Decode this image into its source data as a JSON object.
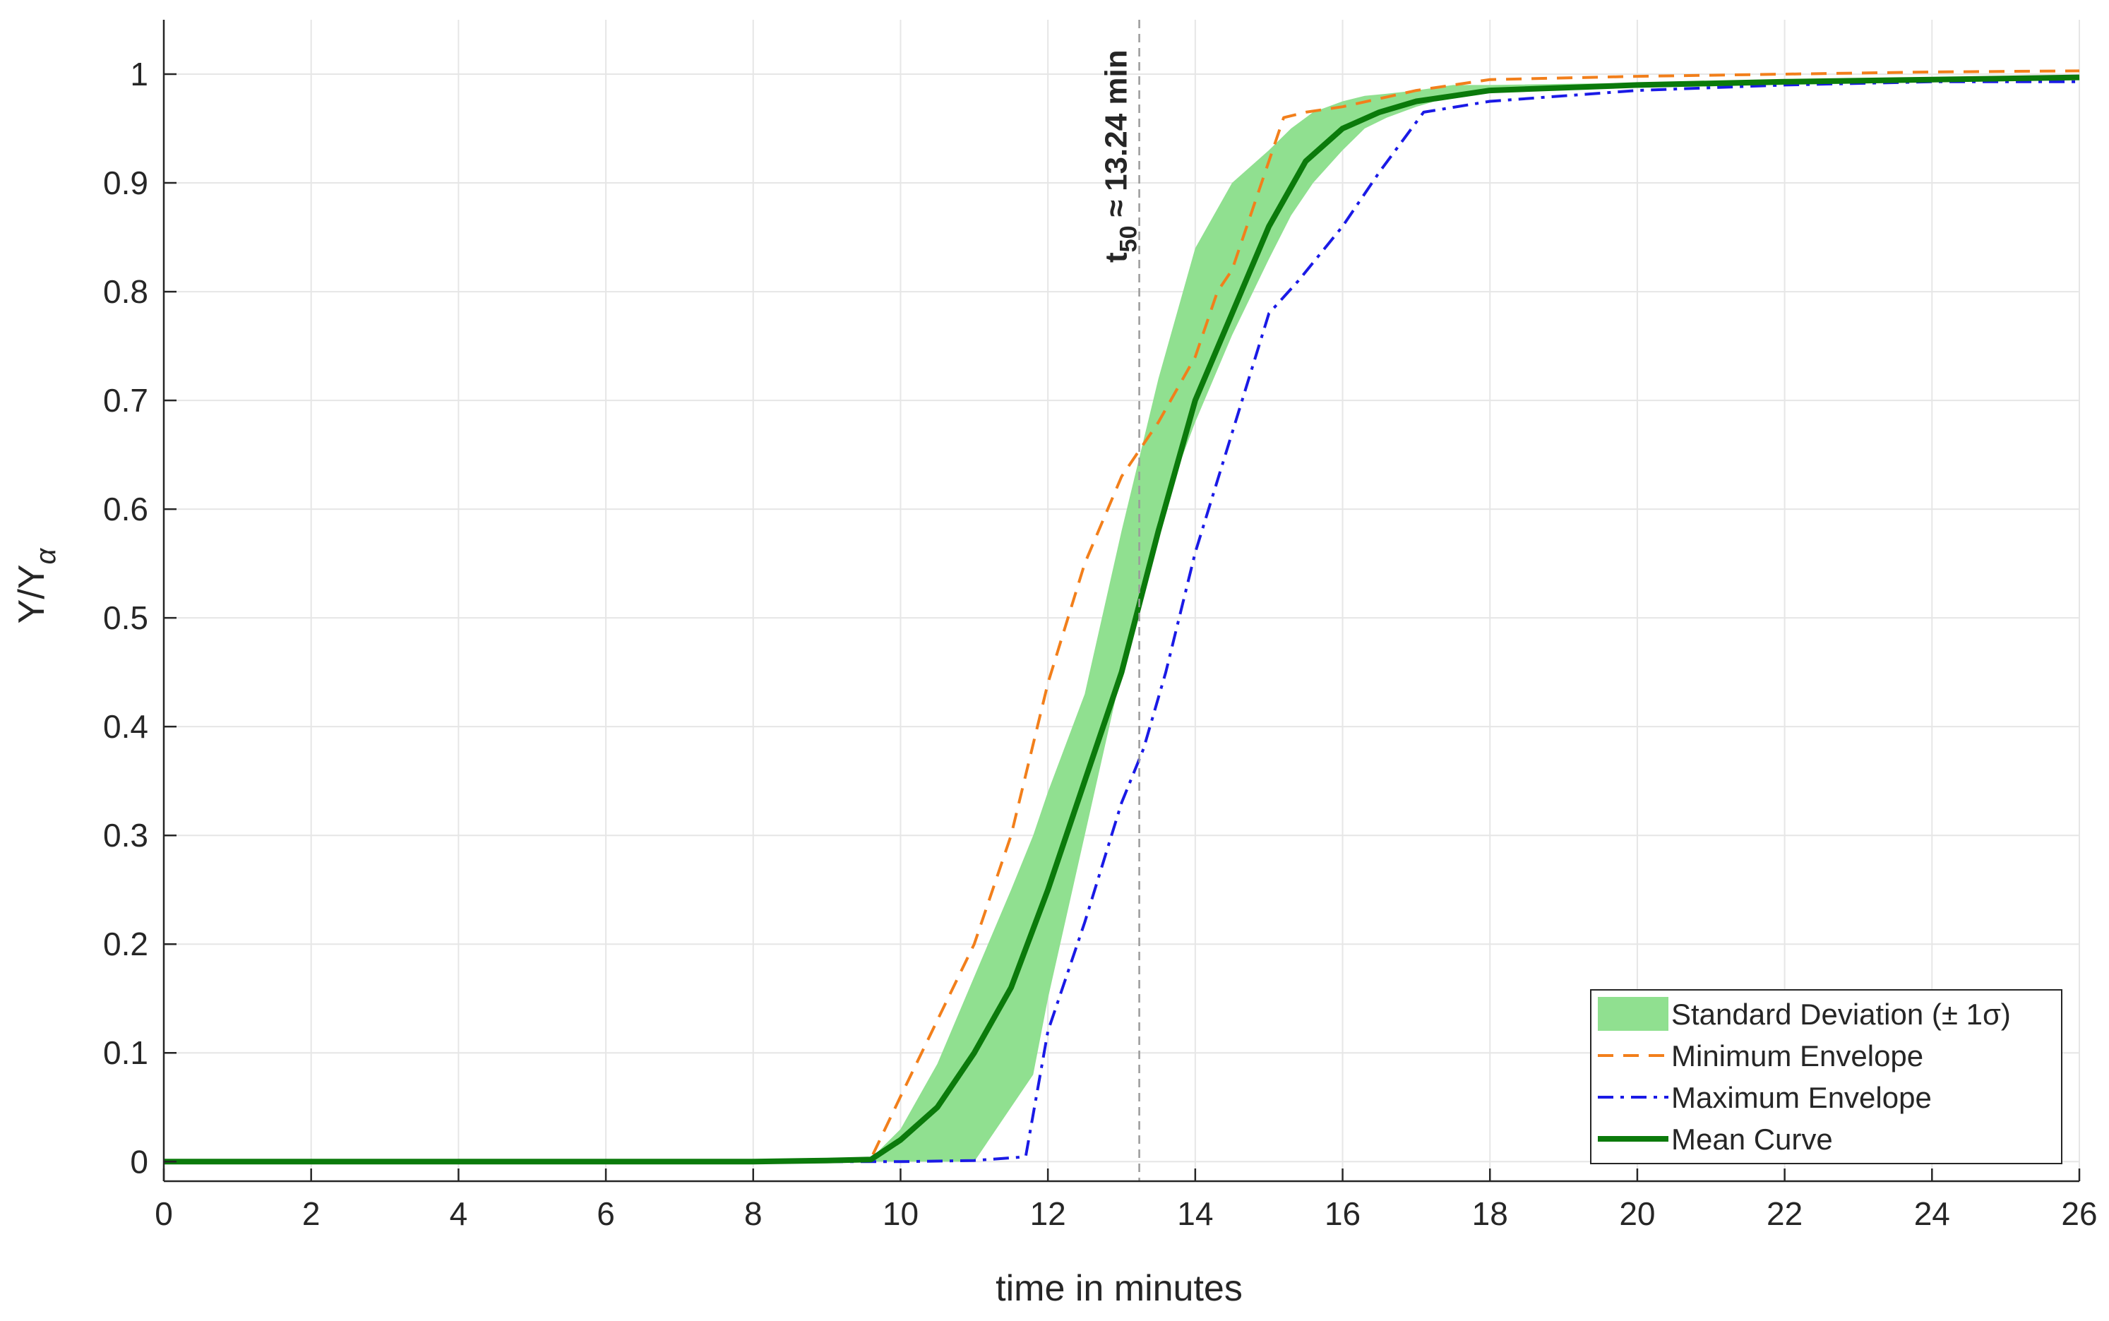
{
  "chart_data": {
    "type": "line",
    "title": "",
    "xlabel": "time in minutes",
    "ylabel": "Y/Y",
    "ylabel_subscript": "α",
    "xlim": [
      0,
      26
    ],
    "ylim": [
      -0.018,
      1.05
    ],
    "x_ticks": [
      0,
      2,
      4,
      6,
      8,
      10,
      12,
      14,
      16,
      18,
      20,
      22,
      24,
      26
    ],
    "x_tick_labels": [
      "0",
      "2",
      "4",
      "6",
      "8",
      "10",
      "12",
      "14",
      "16",
      "18",
      "20",
      "22",
      "24",
      "26"
    ],
    "y_ticks": [
      0,
      0.1,
      0.2,
      0.3,
      0.4,
      0.5,
      0.6,
      0.7,
      0.8,
      0.9,
      1
    ],
    "y_tick_labels": [
      "0",
      "0.1",
      "0.2",
      "0.3",
      "0.4",
      "0.5",
      "0.6",
      "0.7",
      "0.8",
      "0.9",
      "1"
    ],
    "grid": true,
    "legend_position": "bottom-right",
    "annotation": {
      "x": 13.24,
      "text_prefix": "t",
      "text_subscript": "50",
      "text_suffix": " ≈ 13.24 min"
    },
    "band": {
      "name": "Standard Deviation (± 1σ)",
      "color": "#90e090",
      "x": [
        9.6,
        10.0,
        10.5,
        11.0,
        11.5,
        11.8,
        12.0,
        12.5,
        13.0,
        13.5,
        14.0,
        14.5,
        15.0,
        15.3,
        15.6,
        16.0,
        16.3,
        16.6,
        17.0,
        17.5,
        18.0,
        26.0
      ],
      "lower": [
        0.0,
        0.0,
        0.0,
        0.0,
        0.05,
        0.08,
        0.15,
        0.3,
        0.45,
        0.59,
        0.68,
        0.76,
        0.83,
        0.87,
        0.9,
        0.93,
        0.95,
        0.96,
        0.97,
        0.98,
        0.985,
        0.995
      ],
      "upper": [
        0.003,
        0.03,
        0.09,
        0.17,
        0.25,
        0.3,
        0.34,
        0.43,
        0.58,
        0.72,
        0.84,
        0.9,
        0.93,
        0.95,
        0.965,
        0.975,
        0.98,
        0.982,
        0.985,
        0.99,
        0.99,
        0.998
      ]
    },
    "series": [
      {
        "name": "Minimum Envelope",
        "color": "#f27f1b",
        "style": "dashed",
        "x": [
          0,
          9.0,
          9.6,
          10.0,
          10.5,
          11.0,
          11.5,
          12.0,
          12.5,
          13.0,
          13.5,
          14.0,
          14.3,
          14.5,
          14.8,
          15.2,
          15.5,
          16.0,
          17.0,
          18.0,
          20.0,
          22.0,
          24.0,
          26.0
        ],
        "y": [
          0,
          0.0,
          0.003,
          0.06,
          0.13,
          0.2,
          0.3,
          0.44,
          0.55,
          0.63,
          0.68,
          0.74,
          0.8,
          0.82,
          0.88,
          0.96,
          0.965,
          0.97,
          0.985,
          0.995,
          0.998,
          1.0,
          1.002,
          1.003
        ]
      },
      {
        "name": "Maximum Envelope",
        "color": "#1a1ae6",
        "style": "dashdot",
        "x": [
          0,
          9.0,
          10.0,
          11.0,
          11.6,
          11.7,
          12.0,
          12.5,
          13.0,
          13.3,
          13.6,
          14.0,
          14.5,
          15.0,
          15.4,
          16.0,
          16.5,
          17.1,
          18.0,
          20.0,
          22.0,
          24.0,
          26.0
        ],
        "y": [
          0,
          0,
          0,
          0.001,
          0.004,
          0.005,
          0.12,
          0.22,
          0.33,
          0.38,
          0.45,
          0.56,
          0.67,
          0.78,
          0.81,
          0.86,
          0.91,
          0.965,
          0.975,
          0.985,
          0.99,
          0.993,
          0.993
        ]
      },
      {
        "name": "Mean Curve",
        "color": "#0b7a0b",
        "style": "solid",
        "x": [
          0,
          8.0,
          9.0,
          9.6,
          10.0,
          10.5,
          11.0,
          11.5,
          12.0,
          12.5,
          13.0,
          13.5,
          14.0,
          14.5,
          15.0,
          15.5,
          16.0,
          16.5,
          17.0,
          17.5,
          18.0,
          20.0,
          22.0,
          24.0,
          26.0
        ],
        "y": [
          0,
          0.0,
          0.001,
          0.002,
          0.02,
          0.05,
          0.1,
          0.16,
          0.25,
          0.35,
          0.45,
          0.58,
          0.7,
          0.78,
          0.86,
          0.92,
          0.95,
          0.965,
          0.975,
          0.98,
          0.985,
          0.99,
          0.993,
          0.995,
          0.997
        ]
      }
    ]
  }
}
